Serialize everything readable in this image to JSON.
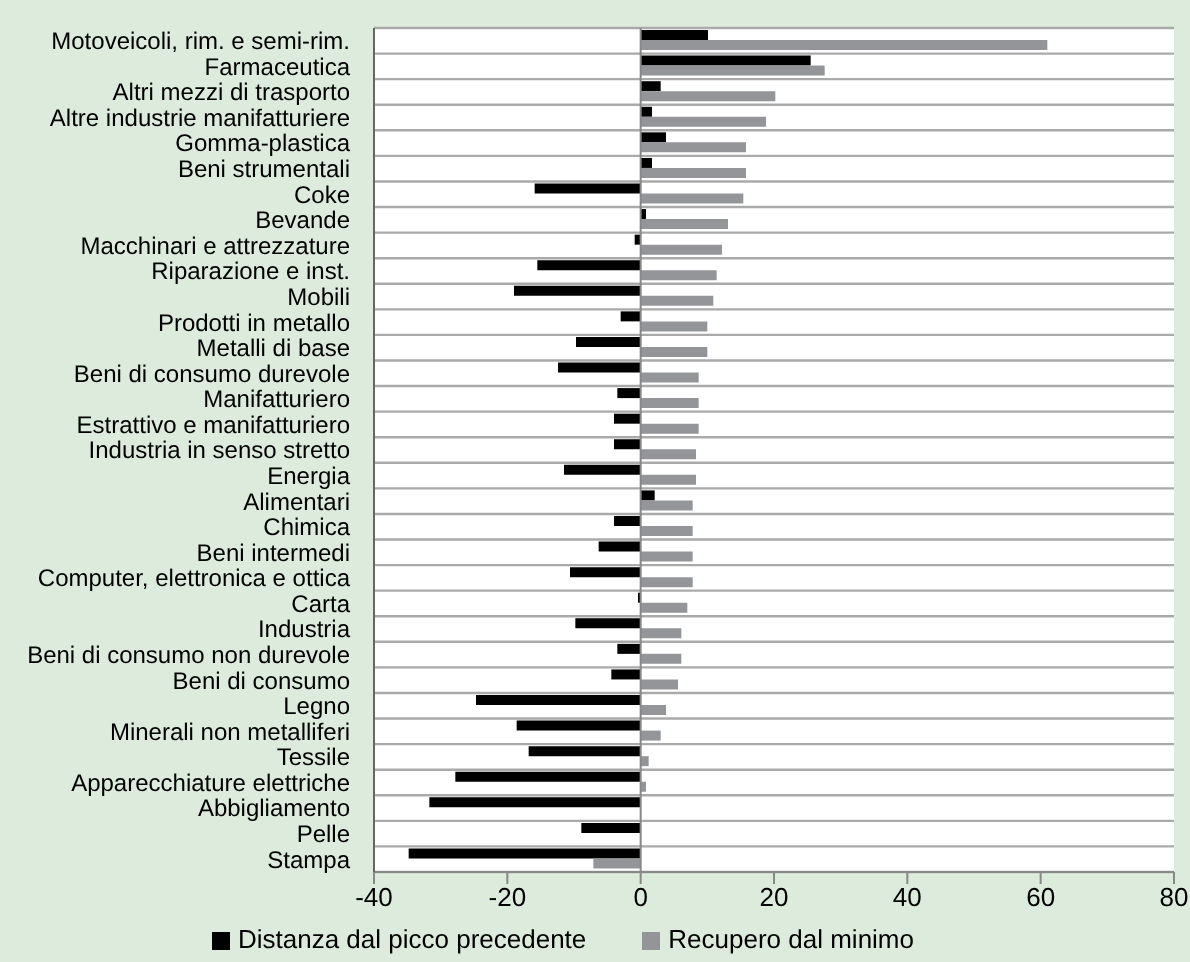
{
  "chart_data": {
    "type": "bar",
    "orientation": "horizontal",
    "categories": [
      "Motoveicoli, rim. e semi-rim.",
      "Farmaceutica",
      "Altri mezzi di trasporto",
      "Altre industrie manifatturiere",
      "Gomma-plastica",
      "Beni strumentali",
      "Coke",
      "Bevande",
      "Macchinari e attrezzature",
      "Riparazione e inst.",
      "Mobili",
      "Prodotti in metallo",
      "Metalli di base",
      "Beni di consumo durevole",
      "Manifatturiero",
      "Estrattivo e manifatturiero",
      "Industria in senso stretto",
      "Energia",
      "Alimentari",
      "Chimica",
      "Beni intermedi",
      "Computer, elettronica e ottica",
      "Carta",
      "Industria",
      "Beni di consumo non durevole",
      "Beni di consumo",
      "Legno",
      "Minerali non metalliferi",
      "Tessile",
      "Apparecchiature elettriche",
      "Abbigliamento",
      "Pelle",
      "Stampa"
    ],
    "series": [
      {
        "name": "Distanza dal picco precedente",
        "color": "#000000",
        "values": [
          10.1,
          25.5,
          3,
          1.7,
          3.8,
          1.7,
          -15.9,
          0.8,
          -0.9,
          -15.5,
          -19,
          -3,
          -9.7,
          -12.4,
          -3.5,
          -4,
          -4,
          -11.5,
          2.1,
          -4,
          -6.3,
          -10.6,
          -0.4,
          -9.8,
          -3.5,
          -4.4,
          -24.7,
          -18.6,
          -16.8,
          -27.8,
          -31.7,
          -8.9,
          -34.8
        ]
      },
      {
        "name": "Recupero dal minimo",
        "color": "#939598",
        "values": [
          61,
          27.6,
          20.2,
          18.8,
          15.8,
          15.8,
          15.4,
          13.1,
          12.2,
          11.4,
          10.9,
          10,
          10,
          8.7,
          8.7,
          8.7,
          8.3,
          8.3,
          7.8,
          7.8,
          7.8,
          7.8,
          7,
          6.1,
          6.1,
          5.6,
          3.8,
          3,
          1.2,
          0.8,
          null,
          null,
          -7.1
        ]
      }
    ],
    "xlim": [
      -40,
      80
    ],
    "xticks": [
      -40,
      -20,
      0,
      20,
      40,
      60,
      80
    ],
    "grid": "y",
    "legend": "bottom"
  }
}
